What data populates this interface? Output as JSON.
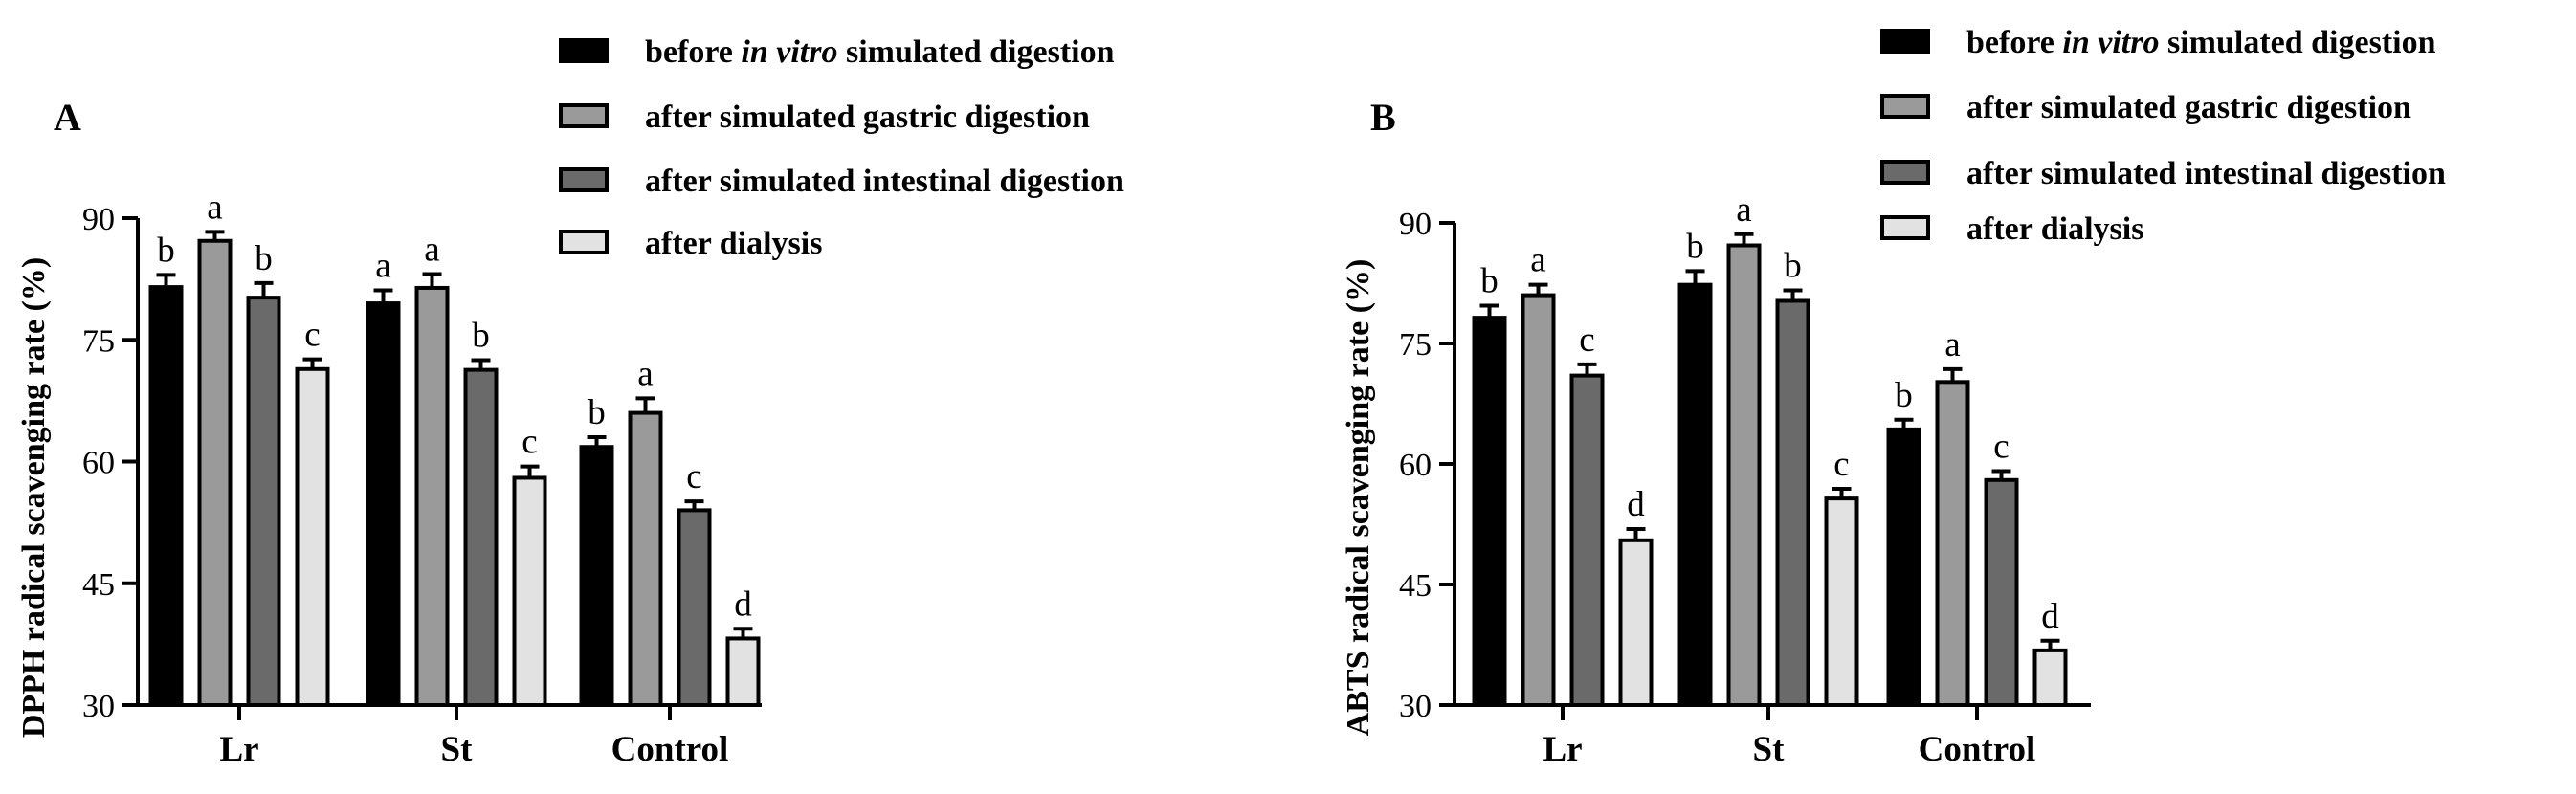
{
  "colors": {
    "before": "#000000",
    "gastric": "#9a9a9a",
    "intestinal": "#6a6a6a",
    "dialysis": "#e2e2e2"
  },
  "legend_series": [
    {
      "key": "before",
      "parts": [
        {
          "t": "before ",
          "i": false
        },
        {
          "t": "in vitro",
          "i": true
        },
        {
          "t": " simulated digestion",
          "i": false
        }
      ]
    },
    {
      "key": "gastric",
      "parts": [
        {
          "t": "after simulated gastric digestion",
          "i": false
        }
      ]
    },
    {
      "key": "intestinal",
      "parts": [
        {
          "t": "after simulated intestinal digestion",
          "i": false
        }
      ]
    },
    {
      "key": "dialysis",
      "parts": [
        {
          "t": "after dialysis",
          "i": false
        }
      ]
    }
  ],
  "legend_series_b": [
    {
      "key": "before",
      "parts": [
        {
          "t": "before ",
          "i": false
        },
        {
          "t": "in vitro",
          "i": true
        },
        {
          "t": " simulated digestion",
          "i": false
        }
      ]
    },
    {
      "key": "gastric",
      "parts": [
        {
          "t": "after simulated gastric digestion",
          "i": false
        }
      ]
    },
    {
      "key": "intestinal",
      "parts": [
        {
          "t": "after simulated  intestinal digestion",
          "i": false
        }
      ]
    },
    {
      "key": "dialysis",
      "parts": [
        {
          "t": "after dialysis",
          "i": false
        }
      ]
    }
  ],
  "chart_data": [
    {
      "type": "bar",
      "panel": "A",
      "ylabel": "DPPH radical scavenging rate (%)",
      "xlabel": "",
      "ylim": [
        30,
        90
      ],
      "yticks": [
        30,
        45,
        60,
        75,
        90
      ],
      "categories": [
        "Lr",
        "St",
        "Control"
      ],
      "legend_placement": "top-right",
      "grid": false,
      "series": [
        {
          "name": "before in vitro simulated digestion",
          "key": "before",
          "values": [
            81.5,
            79.5,
            61.8
          ],
          "errors": [
            1.5,
            1.6,
            1.2
          ],
          "letters": [
            "b",
            "a",
            "b"
          ]
        },
        {
          "name": "after simulated gastric digestion",
          "key": "gastric",
          "values": [
            87.2,
            81.4,
            66.0
          ],
          "errors": [
            1.1,
            1.7,
            1.8
          ],
          "letters": [
            "a",
            "a",
            "a"
          ]
        },
        {
          "name": "after simulated intestinal digestion",
          "key": "intestinal",
          "values": [
            80.2,
            71.3,
            54.0
          ],
          "errors": [
            1.8,
            1.2,
            1.1
          ],
          "letters": [
            "b",
            "b",
            "c"
          ]
        },
        {
          "name": "after dialysis",
          "key": "dialysis",
          "values": [
            71.4,
            58.0,
            38.2
          ],
          "errors": [
            1.2,
            1.4,
            1.2
          ],
          "letters": [
            "c",
            "c",
            "d"
          ]
        }
      ]
    },
    {
      "type": "bar",
      "panel": "B",
      "ylabel": "ABTS radical scavenging rate (%)",
      "xlabel": "",
      "ylim": [
        30,
        90
      ],
      "yticks": [
        30,
        45,
        60,
        75,
        90
      ],
      "categories": [
        "Lr",
        "St",
        "Control"
      ],
      "legend_placement": "top-right",
      "grid": false,
      "series": [
        {
          "name": "before in vitro simulated digestion",
          "key": "before",
          "values": [
            78.2,
            82.3,
            64.3
          ],
          "errors": [
            1.5,
            1.7,
            1.2
          ],
          "letters": [
            "b",
            "b",
            "b"
          ]
        },
        {
          "name": "after simulated gastric digestion",
          "key": "gastric",
          "values": [
            81.0,
            87.2,
            70.2
          ],
          "errors": [
            1.3,
            1.4,
            1.6
          ],
          "letters": [
            "a",
            "a",
            "a"
          ]
        },
        {
          "name": "after simulated  intestinal digestion",
          "key": "intestinal",
          "values": [
            71.0,
            80.3,
            58.0
          ],
          "errors": [
            1.4,
            1.3,
            1.1
          ],
          "letters": [
            "c",
            "b",
            "c"
          ]
        },
        {
          "name": "after dialysis",
          "key": "dialysis",
          "values": [
            50.5,
            55.7,
            36.8
          ],
          "errors": [
            1.4,
            1.2,
            1.2
          ],
          "letters": [
            "d",
            "c",
            "d"
          ]
        }
      ]
    }
  ]
}
